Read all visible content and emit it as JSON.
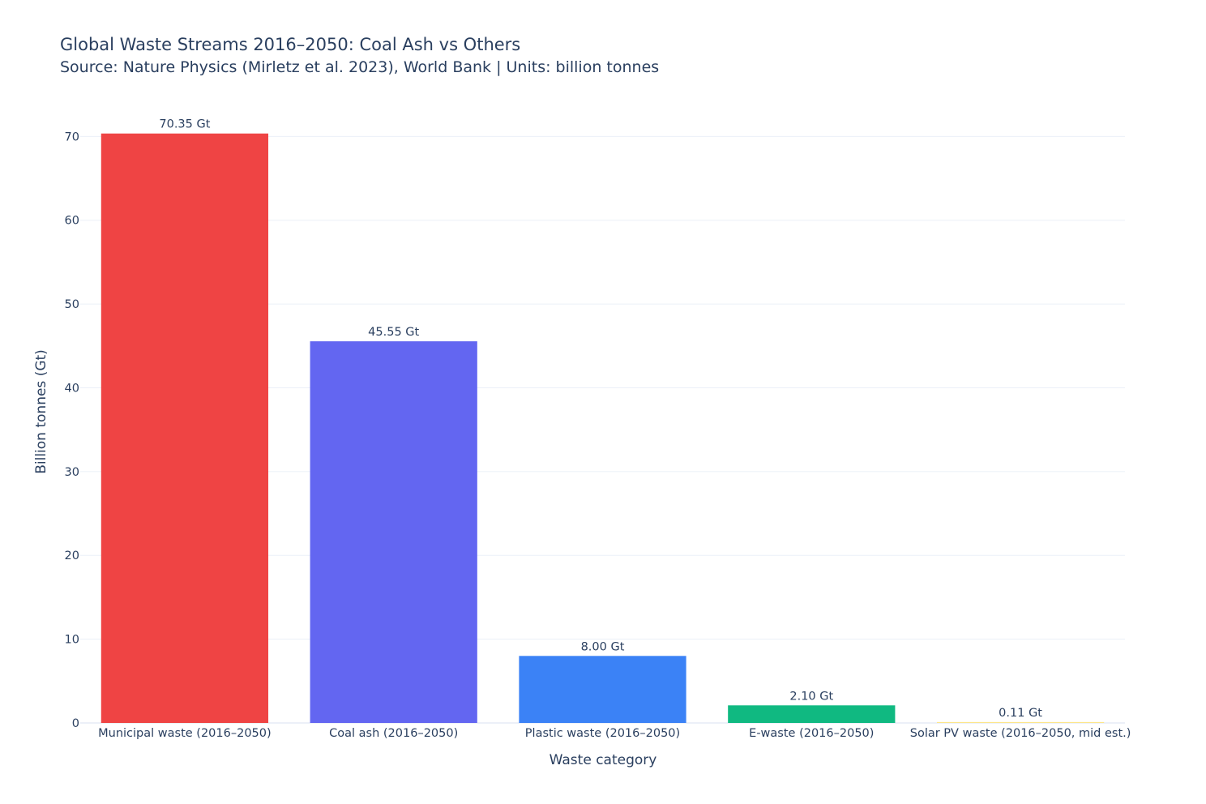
{
  "chart_data": {
    "type": "bar",
    "title": "Global Waste Streams 2016–2050: Coal Ash vs Others",
    "subtitle": "Source: Nature Physics (Mirletz et al. 2023), World Bank | Units: billion tonnes",
    "xlabel": "Waste category",
    "ylabel": "Billion tonnes (Gt)",
    "categories": [
      "Municipal waste (2016–2050)",
      "Coal ash (2016–2050)",
      "Plastic waste (2016–2050)",
      "E-waste (2016–2050)",
      "Solar PV waste (2016–2050, mid est.)"
    ],
    "values": [
      70.35,
      45.55,
      8.0,
      2.1,
      0.11
    ],
    "data_labels": [
      "70.35 Gt",
      "45.55 Gt",
      "8.00 Gt",
      "2.10 Gt",
      "0.11 Gt"
    ],
    "colors": [
      "#ef4444",
      "#6366f1",
      "#3b82f6",
      "#10b981",
      "#fde68a"
    ],
    "yticks": [
      0,
      10,
      20,
      30,
      40,
      50,
      60,
      70
    ],
    "ylim": [
      0,
      74
    ],
    "grid": true,
    "legend": "none"
  }
}
